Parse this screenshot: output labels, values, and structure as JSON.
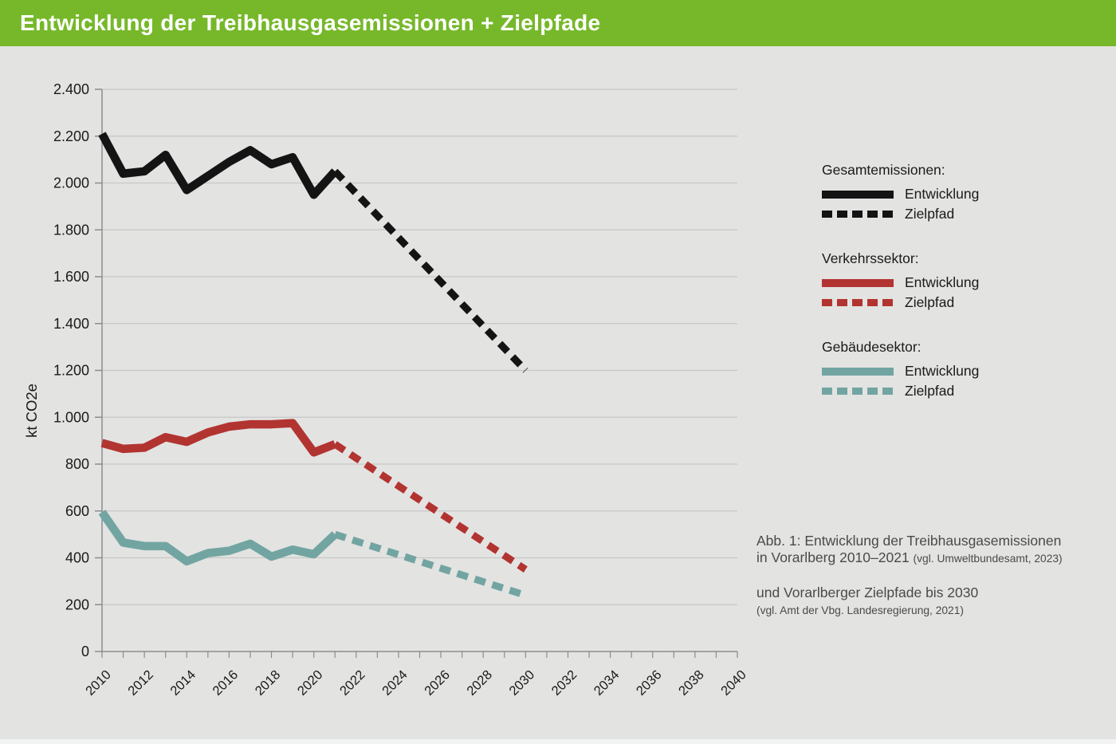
{
  "header": {
    "title": "Entwicklung der Treibhausgasemissionen + Zielpfade",
    "background": "#76b82a"
  },
  "legend": {
    "groups": [
      {
        "title": "Gesamtemissionen:",
        "color": "#141414",
        "items": [
          {
            "label": "Entwicklung",
            "style": "solid"
          },
          {
            "label": "Zielpfad",
            "style": "dashed"
          }
        ]
      },
      {
        "title": "Verkehrssektor:",
        "color": "#b23430",
        "items": [
          {
            "label": "Entwicklung",
            "style": "solid"
          },
          {
            "label": "Zielpfad",
            "style": "dashed"
          }
        ]
      },
      {
        "title": "Gebäudesektor:",
        "color": "#72a5a2",
        "items": [
          {
            "label": "Entwicklung",
            "style": "solid"
          },
          {
            "label": "Zielpfad",
            "style": "dashed"
          }
        ]
      }
    ]
  },
  "caption": {
    "line1": "Abb. 1: Entwicklung der Treibhausgasemissionen",
    "line2": "in Vorarlberg 2010–2021 ",
    "line2_small": "(vgl. Umweltbundesamt, 2023)",
    "line3": "und Vorarlberger Zielpfade bis 2030",
    "line4": "(vgl. Amt der Vbg. Landesregierung, 2021)"
  },
  "chart_data": {
    "type": "line",
    "title": "Entwicklung der Treibhausgasemissionen + Zielpfade",
    "xlabel": "",
    "ylabel": "kt CO2e",
    "ylim": [
      0,
      2400
    ],
    "ytick_step": 200,
    "xlim": [
      2010,
      2040
    ],
    "xtick_step": 2,
    "grid": true,
    "legend_position": "right",
    "series": [
      {
        "name": "Gesamtemissionen Entwicklung",
        "color": "#141414",
        "style": "solid",
        "x": [
          2010,
          2011,
          2012,
          2013,
          2014,
          2015,
          2016,
          2017,
          2018,
          2019,
          2020,
          2021
        ],
        "values": [
          2210,
          2040,
          2050,
          2120,
          1970,
          2030,
          2090,
          2140,
          2080,
          2110,
          1950,
          2050
        ]
      },
      {
        "name": "Gesamtemissionen Zielpfad",
        "color": "#141414",
        "style": "dashed",
        "x": [
          2021,
          2030
        ],
        "values": [
          2050,
          1200
        ]
      },
      {
        "name": "Verkehrssektor Entwicklung",
        "color": "#b23430",
        "style": "solid",
        "x": [
          2010,
          2011,
          2012,
          2013,
          2014,
          2015,
          2016,
          2017,
          2018,
          2019,
          2020,
          2021
        ],
        "values": [
          890,
          865,
          870,
          915,
          895,
          935,
          960,
          970,
          970,
          975,
          850,
          885
        ]
      },
      {
        "name": "Verkehrssektor Zielpfad",
        "color": "#b23430",
        "style": "dashed",
        "x": [
          2021,
          2030
        ],
        "values": [
          885,
          350
        ]
      },
      {
        "name": "Gebäudesektor Entwicklung",
        "color": "#72a5a2",
        "style": "solid",
        "x": [
          2010,
          2011,
          2012,
          2013,
          2014,
          2015,
          2016,
          2017,
          2018,
          2019,
          2020,
          2021
        ],
        "values": [
          595,
          465,
          450,
          450,
          385,
          420,
          430,
          460,
          405,
          435,
          415,
          500
        ]
      },
      {
        "name": "Gebäudesektor Zielpfad",
        "color": "#72a5a2",
        "style": "dashed",
        "x": [
          2021,
          2030
        ],
        "values": [
          500,
          240
        ]
      }
    ]
  }
}
